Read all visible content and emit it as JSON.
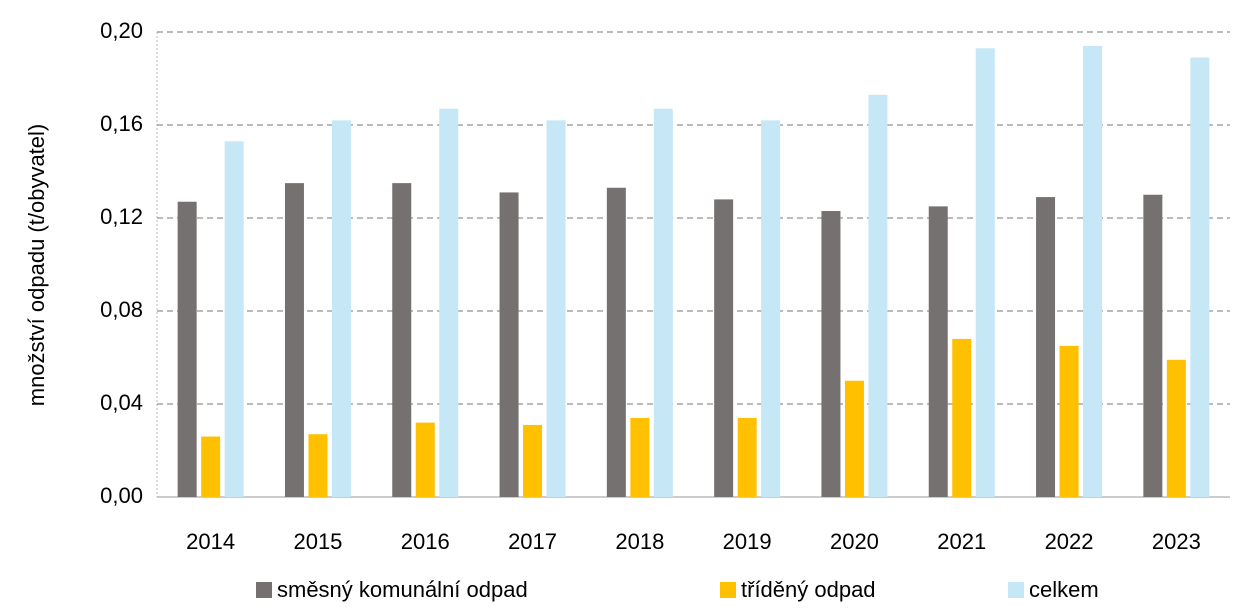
{
  "chart_data": {
    "type": "bar",
    "y_label": "množství odpadu (t/obyvatel)",
    "categories": [
      "2014",
      "2015",
      "2016",
      "2017",
      "2018",
      "2019",
      "2020",
      "2021",
      "2022",
      "2023"
    ],
    "series": [
      {
        "name": "směsný komunální odpad",
        "color": "#767171",
        "values": [
          0.127,
          0.135,
          0.135,
          0.131,
          0.133,
          0.128,
          0.123,
          0.125,
          0.129,
          0.13
        ]
      },
      {
        "name": "tříděný odpad",
        "color": "#ffc000",
        "values": [
          0.026,
          0.027,
          0.032,
          0.031,
          0.034,
          0.034,
          0.05,
          0.068,
          0.065,
          0.059
        ]
      },
      {
        "name": "celkem",
        "color": "#c5e7f6",
        "values": [
          0.153,
          0.162,
          0.167,
          0.162,
          0.167,
          0.162,
          0.173,
          0.193,
          0.194,
          0.189
        ]
      }
    ],
    "ylim": [
      0,
      0.2
    ],
    "yticks": [
      {
        "value": 0,
        "label": "0,00"
      },
      {
        "value": 0.04,
        "label": "0,04"
      },
      {
        "value": 0.08,
        "label": "0,08"
      },
      {
        "value": 0.12,
        "label": "0,12"
      },
      {
        "value": 0.16,
        "label": "0,16"
      },
      {
        "value": 0.2,
        "label": "0,20"
      }
    ],
    "grid": true
  }
}
